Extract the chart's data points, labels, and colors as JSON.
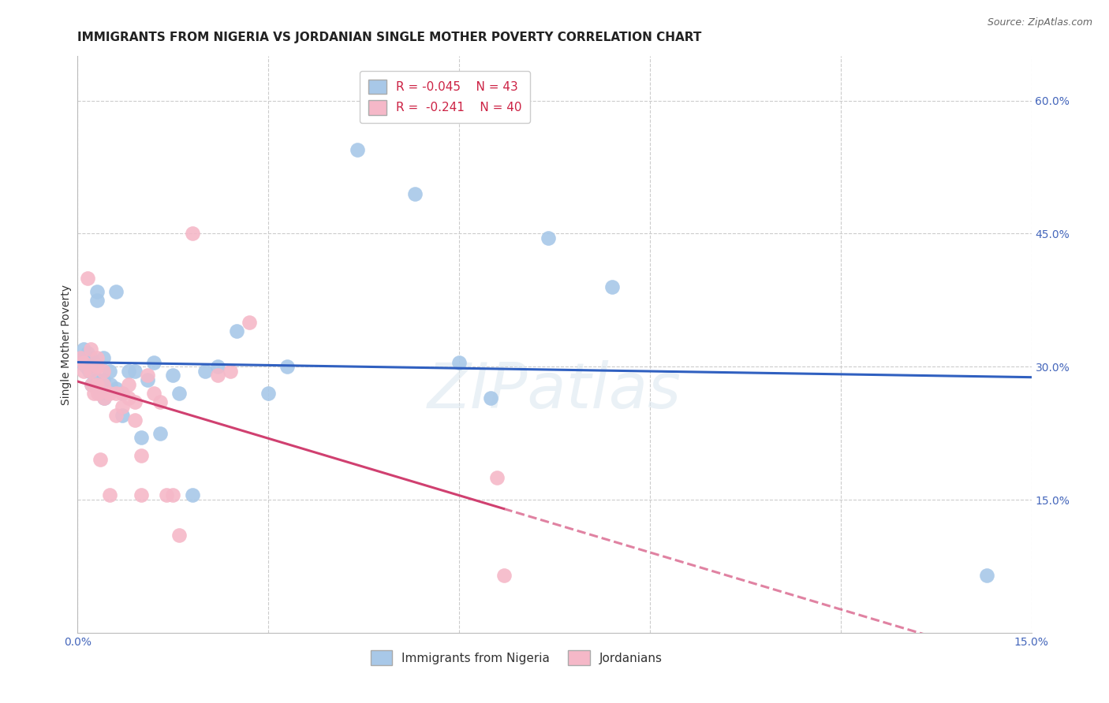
{
  "title": "IMMIGRANTS FROM NIGERIA VS JORDANIAN SINGLE MOTHER POVERTY CORRELATION CHART",
  "source": "Source: ZipAtlas.com",
  "ylabel": "Single Mother Poverty",
  "xlim": [
    0.0,
    0.15
  ],
  "ylim": [
    0.0,
    0.65
  ],
  "xtick_positions": [
    0.0,
    0.03,
    0.06,
    0.09,
    0.12,
    0.15
  ],
  "xtick_labels": [
    "0.0%",
    "",
    "",
    "",
    "",
    "15.0%"
  ],
  "ytick_values": [
    0.15,
    0.3,
    0.45,
    0.6
  ],
  "ytick_labels": [
    "15.0%",
    "30.0%",
    "45.0%",
    "60.0%"
  ],
  "nigeria_R": "-0.045",
  "nigeria_N": "43",
  "jordan_R": "-0.241",
  "jordan_N": "40",
  "nigeria_color": "#a8c8e8",
  "jordan_color": "#f5b8c8",
  "nigeria_edge_color": "#a8c8e8",
  "jordan_edge_color": "#f5b8c8",
  "nigeria_line_color": "#3060c0",
  "jordan_line_color": "#d04070",
  "background_color": "#ffffff",
  "grid_color": "#cccccc",
  "legend_nigeria_label": "Immigrants from Nigeria",
  "legend_jordan_label": "Jordanians",
  "title_fontsize": 11,
  "axis_label_fontsize": 10,
  "tick_fontsize": 10,
  "legend_fontsize": 11,
  "watermark": "ZIPatlas",
  "nigeria_points_x": [
    0.0005,
    0.0007,
    0.001,
    0.0013,
    0.0015,
    0.0018,
    0.002,
    0.0022,
    0.0025,
    0.003,
    0.003,
    0.0032,
    0.0035,
    0.004,
    0.004,
    0.0042,
    0.005,
    0.0052,
    0.006,
    0.006,
    0.007,
    0.007,
    0.008,
    0.009,
    0.01,
    0.011,
    0.012,
    0.013,
    0.015,
    0.016,
    0.018,
    0.02,
    0.022,
    0.025,
    0.03,
    0.033,
    0.044,
    0.053,
    0.06,
    0.065,
    0.074,
    0.084,
    0.143
  ],
  "nigeria_points_y": [
    0.305,
    0.31,
    0.32,
    0.3,
    0.315,
    0.295,
    0.31,
    0.28,
    0.305,
    0.385,
    0.375,
    0.285,
    0.27,
    0.31,
    0.285,
    0.265,
    0.295,
    0.28,
    0.385,
    0.275,
    0.27,
    0.245,
    0.295,
    0.295,
    0.22,
    0.285,
    0.305,
    0.225,
    0.29,
    0.27,
    0.155,
    0.295,
    0.3,
    0.34,
    0.27,
    0.3,
    0.545,
    0.495,
    0.305,
    0.265,
    0.445,
    0.39,
    0.065
  ],
  "jordan_points_x": [
    0.0005,
    0.001,
    0.001,
    0.0015,
    0.002,
    0.002,
    0.0022,
    0.0025,
    0.003,
    0.003,
    0.003,
    0.0032,
    0.0035,
    0.004,
    0.004,
    0.0042,
    0.005,
    0.005,
    0.006,
    0.006,
    0.007,
    0.007,
    0.008,
    0.008,
    0.009,
    0.009,
    0.01,
    0.01,
    0.011,
    0.012,
    0.013,
    0.014,
    0.015,
    0.016,
    0.018,
    0.022,
    0.024,
    0.027,
    0.066,
    0.067
  ],
  "jordan_points_y": [
    0.31,
    0.305,
    0.295,
    0.4,
    0.32,
    0.295,
    0.28,
    0.27,
    0.31,
    0.3,
    0.28,
    0.27,
    0.195,
    0.295,
    0.28,
    0.265,
    0.27,
    0.155,
    0.27,
    0.245,
    0.27,
    0.255,
    0.28,
    0.265,
    0.26,
    0.24,
    0.2,
    0.155,
    0.29,
    0.27,
    0.26,
    0.155,
    0.155,
    0.11,
    0.45,
    0.29,
    0.295,
    0.35,
    0.175,
    0.065
  ]
}
